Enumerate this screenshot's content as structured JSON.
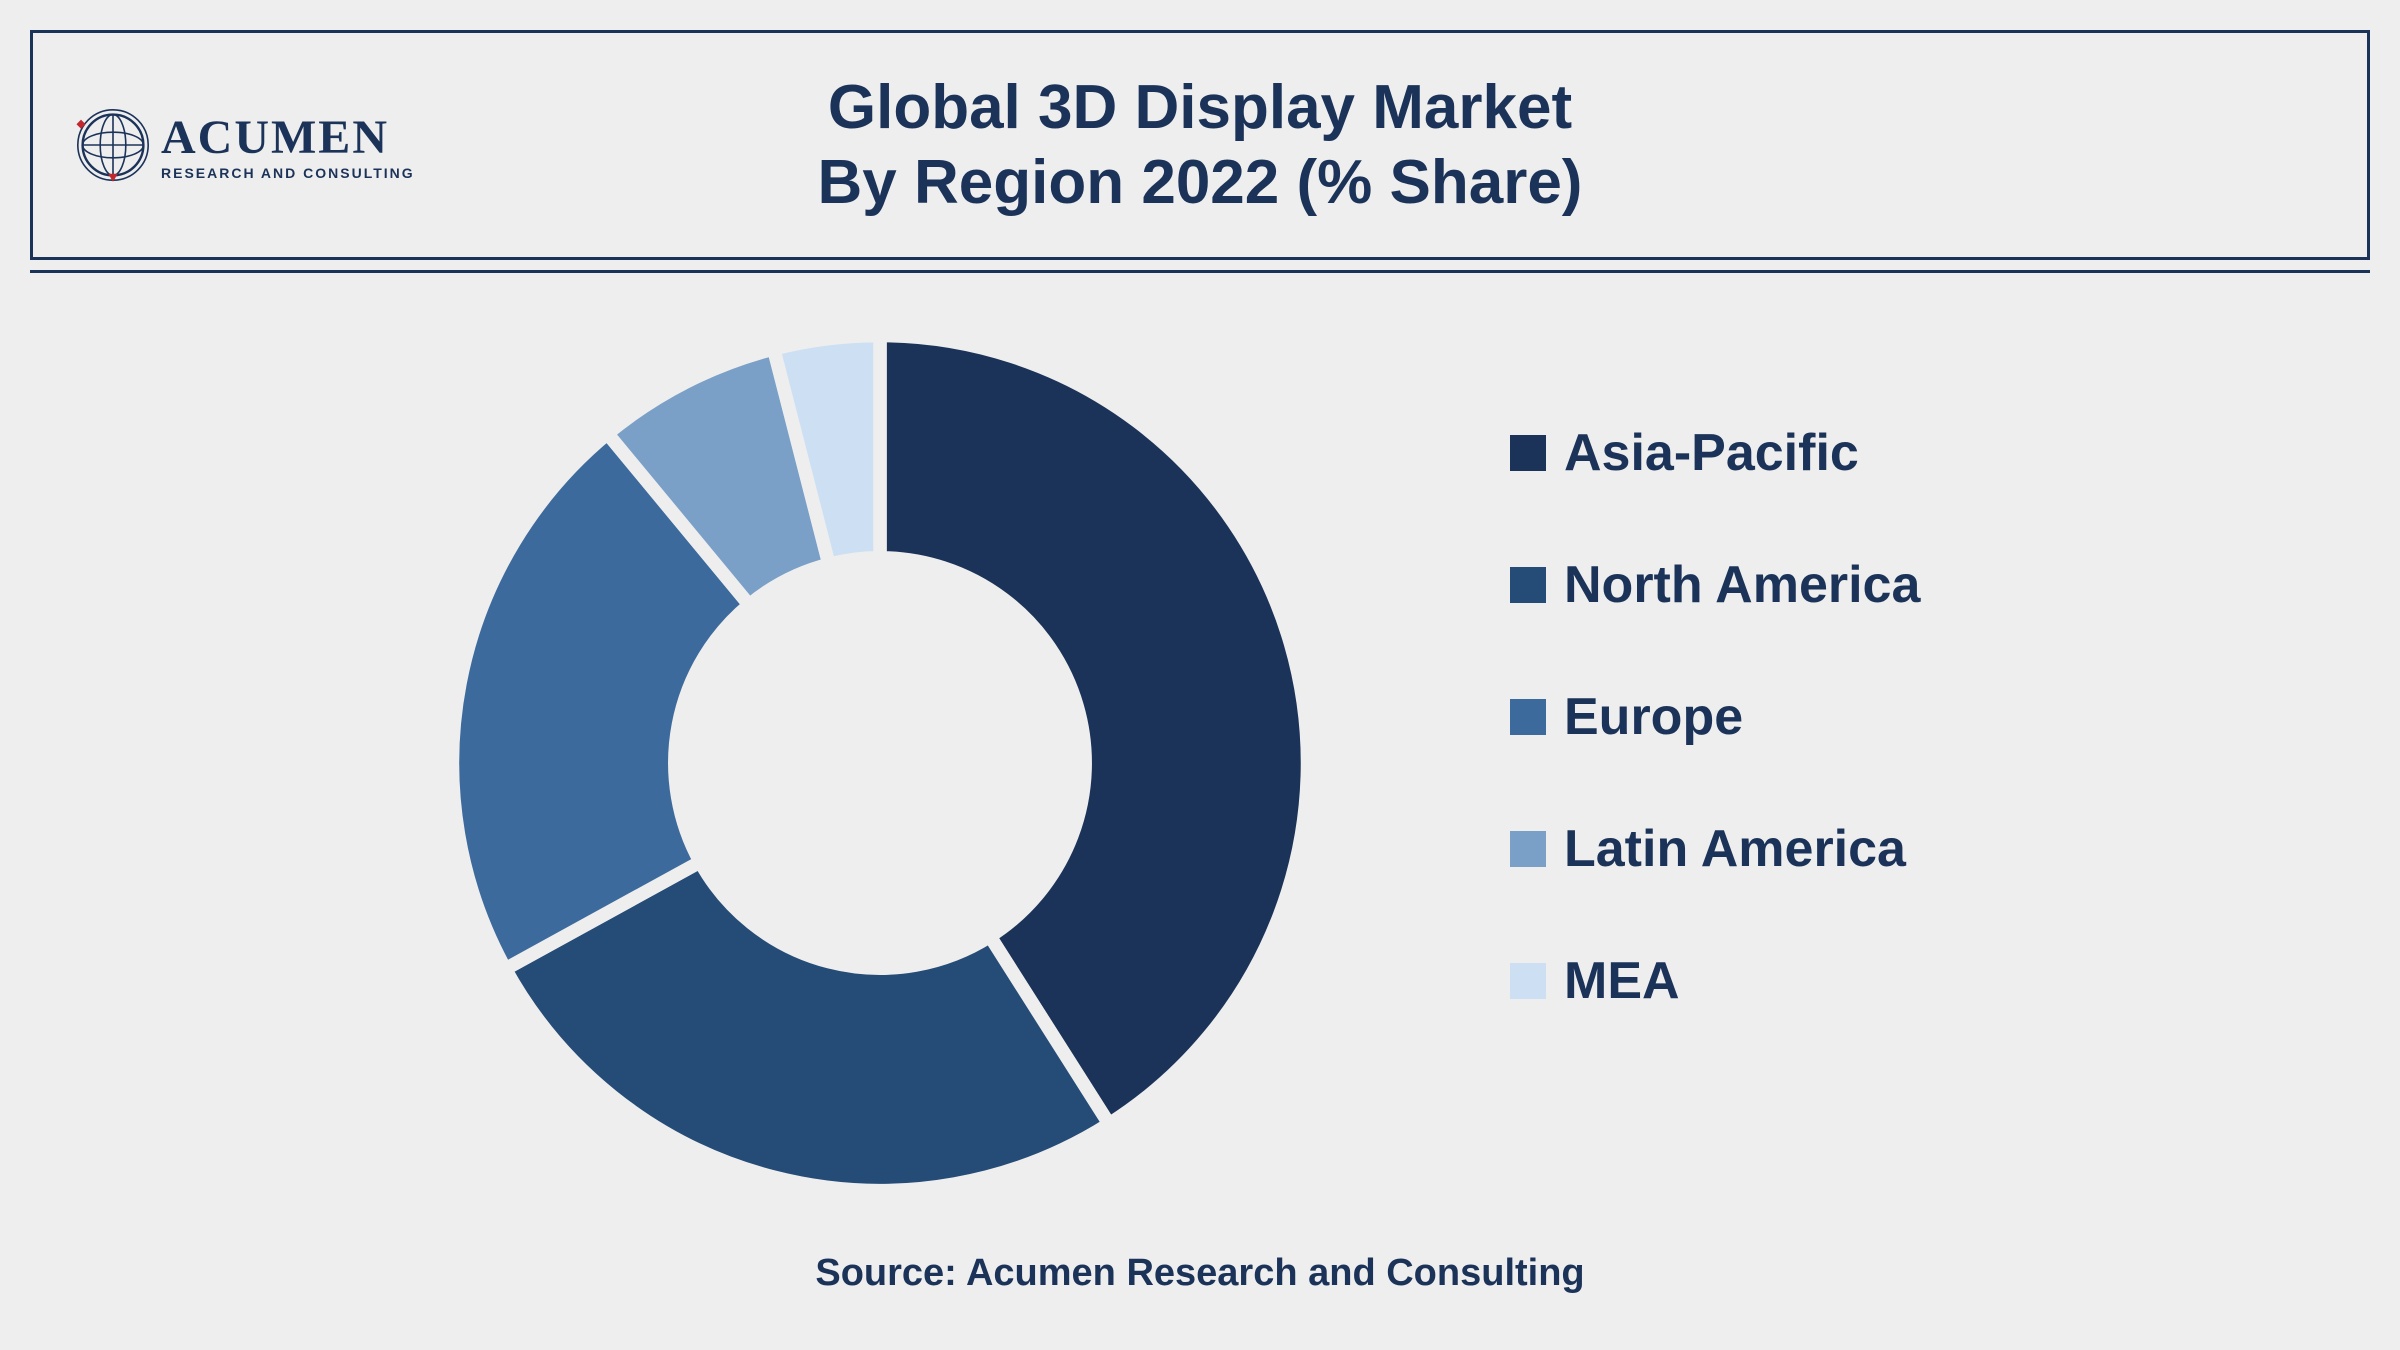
{
  "logo": {
    "name": "ACUMEN",
    "tagline": "RESEARCH AND CONSULTING",
    "globe_stroke": "#1c3359",
    "globe_accent": "#c1272d"
  },
  "title": {
    "line1": "Global 3D Display Market",
    "line2": "By Region 2022 (% Share)",
    "color": "#1c3359",
    "fontsize": 62
  },
  "chart": {
    "type": "donut",
    "background_color": "#eeeeee",
    "inner_radius_pct": 48,
    "outer_radius_pct": 100,
    "stroke_color": "#eeeeee",
    "stroke_width": 3,
    "segments": [
      {
        "label": "Asia-Pacific",
        "value": 41,
        "color": "#1c3359"
      },
      {
        "label": "North America",
        "value": 26,
        "color": "#254b77"
      },
      {
        "label": "Europe",
        "value": 22,
        "color": "#3d6a9c"
      },
      {
        "label": "Latin America",
        "value": 7,
        "color": "#7ba0c8"
      },
      {
        "label": "MEA",
        "value": 4,
        "color": "#cde0f3"
      }
    ]
  },
  "legend": {
    "label_fontsize": 52,
    "label_color": "#1c3359",
    "swatch_size": 36
  },
  "source": "Source: Acumen Research and Consulting"
}
